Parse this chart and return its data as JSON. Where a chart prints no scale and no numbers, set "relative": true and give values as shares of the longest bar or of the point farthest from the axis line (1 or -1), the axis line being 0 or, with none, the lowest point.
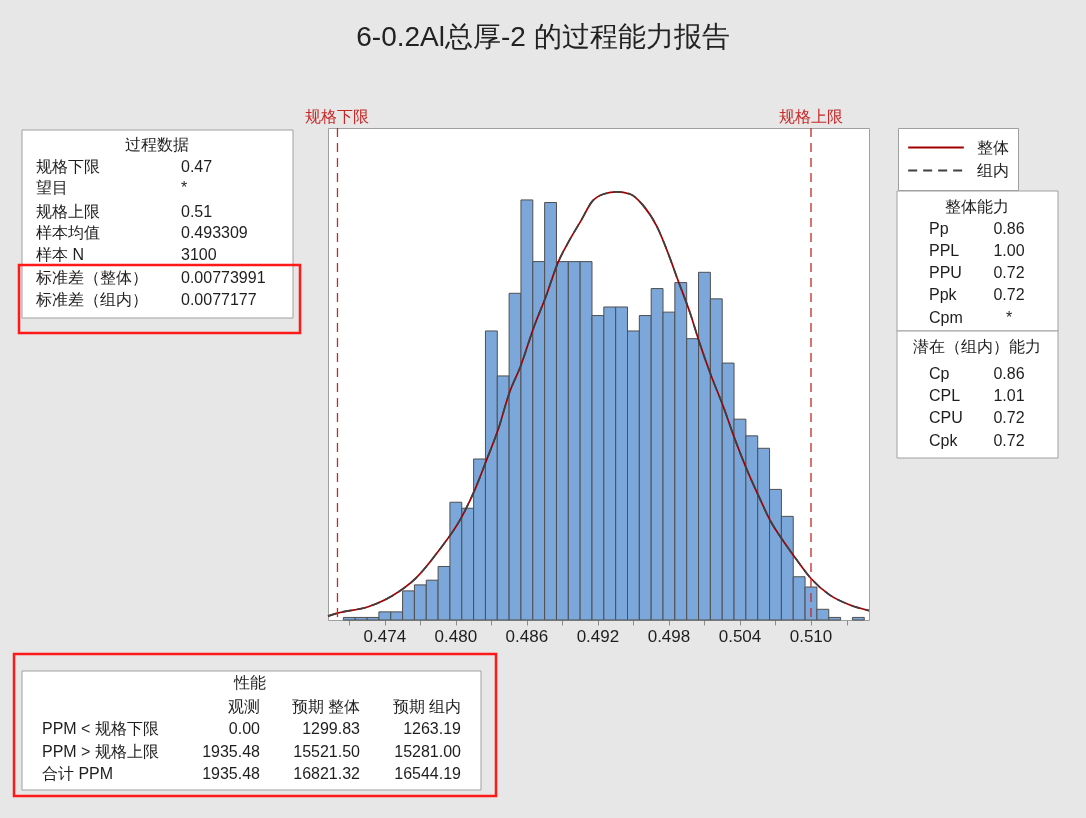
{
  "chart_data": {
    "type": "histogram",
    "title": "6-0.2Al总厚-2 的过程能力报告",
    "relative": true,
    "color": "#7ba7db",
    "bins": [
      0.4705,
      0.4715,
      0.4725,
      0.4735,
      0.4745,
      0.4755,
      0.4765,
      0.4775,
      0.4785,
      0.4795,
      0.4805,
      0.4815,
      0.4825,
      0.4835,
      0.4845,
      0.4855,
      0.4865,
      0.4875,
      0.4885,
      0.4895,
      0.4905,
      0.4915,
      0.4925,
      0.4935,
      0.4945,
      0.4955,
      0.4965,
      0.4975,
      0.4985,
      0.4995,
      0.5005,
      0.5015,
      0.5025,
      0.5035,
      0.5045,
      0.5055,
      0.5065,
      0.5075,
      0.5085,
      0.5095,
      0.5105,
      0.5115,
      0.5125,
      0.5135,
      0.5145
    ],
    "values": [
      0.006,
      0.006,
      0.006,
      0.019,
      0.019,
      0.068,
      0.082,
      0.093,
      0.125,
      0.275,
      0.261,
      0.376,
      0.675,
      0.57,
      0.763,
      0.981,
      0.837,
      0.975,
      0.837,
      0.837,
      0.837,
      0.711,
      0.731,
      0.731,
      0.675,
      0.711,
      0.774,
      0.719,
      0.788,
      0.657,
      0.812,
      0.75,
      0.6,
      0.469,
      0.43,
      0.401,
      0.305,
      0.242,
      0.101,
      0.077,
      0.025,
      0.006,
      0,
      0.006
    ],
    "series": [
      {
        "name": "整体",
        "type": "line",
        "color": "#a00000",
        "line_style": "solid",
        "x": [
          0.4692,
          0.47,
          0.4726,
          0.4746,
          0.4766,
          0.4785,
          0.4805,
          0.4816,
          0.4826,
          0.4836,
          0.4845,
          0.4855,
          0.4866,
          0.4876,
          0.4886,
          0.4896,
          0.4906,
          0.4915,
          0.4925,
          0.4936,
          0.4947,
          0.4958,
          0.497,
          0.4981,
          0.4987,
          0.4998,
          0.5006,
          0.5016,
          0.5026,
          0.5036,
          0.5046,
          0.5056,
          0.5066,
          0.5076,
          0.5086,
          0.51,
          0.5116,
          0.5133,
          0.5149
        ],
        "values": [
          0.009,
          0.016,
          0.031,
          0.056,
          0.097,
          0.16,
          0.241,
          0.304,
          0.374,
          0.447,
          0.529,
          0.595,
          0.685,
          0.755,
          0.833,
          0.887,
          0.934,
          0.977,
          0.995,
          1.0,
          0.995,
          0.969,
          0.918,
          0.844,
          0.798,
          0.716,
          0.646,
          0.568,
          0.498,
          0.42,
          0.35,
          0.288,
          0.23,
          0.187,
          0.148,
          0.097,
          0.058,
          0.035,
          0.022
        ]
      },
      {
        "name": "组内",
        "type": "line",
        "color": "#404040",
        "line_style": "dashed",
        "x": [
          0.4692,
          0.47,
          0.4726,
          0.4746,
          0.4766,
          0.4785,
          0.4805,
          0.4816,
          0.4826,
          0.4836,
          0.4845,
          0.4855,
          0.4866,
          0.4876,
          0.4886,
          0.4896,
          0.4906,
          0.4915,
          0.4925,
          0.4936,
          0.4947,
          0.4958,
          0.497,
          0.4981,
          0.4987,
          0.4998,
          0.5006,
          0.5016,
          0.5026,
          0.5036,
          0.5046,
          0.5056,
          0.5066,
          0.5076,
          0.5086,
          0.51,
          0.5116,
          0.5133,
          0.5149
        ],
        "values": [
          0.009,
          0.016,
          0.031,
          0.056,
          0.097,
          0.16,
          0.241,
          0.304,
          0.374,
          0.447,
          0.529,
          0.595,
          0.685,
          0.755,
          0.833,
          0.887,
          0.934,
          0.977,
          0.995,
          1.0,
          0.995,
          0.969,
          0.918,
          0.844,
          0.798,
          0.716,
          0.646,
          0.568,
          0.498,
          0.42,
          0.35,
          0.288,
          0.23,
          0.187,
          0.148,
          0.097,
          0.058,
          0.035,
          0.022
        ]
      }
    ],
    "xlim": [
      0.4692,
      0.5149
    ],
    "xticks": [
      {
        "value": 0.471,
        "label": null
      },
      0.474,
      {
        "value": 0.477,
        "label": null
      },
      {
        "value": 0.48,
        "label": "0.480"
      },
      {
        "value": 0.483,
        "label": null
      },
      0.486,
      {
        "value": 0.489,
        "label": null
      },
      0.492,
      {
        "value": 0.495,
        "label": null
      },
      0.498,
      {
        "value": 0.501,
        "label": null
      },
      0.504,
      {
        "value": 0.507,
        "label": null
      },
      {
        "value": 0.51,
        "label": "0.510"
      },
      {
        "value": 0.513,
        "label": null
      }
    ],
    "ref_lines": [
      {
        "axis": "x",
        "value": 0.47,
        "label": "规格下限",
        "color": "#c62828",
        "line_style": "dashed"
      },
      {
        "axis": "x",
        "value": 0.51,
        "label": "规格上限",
        "color": "#c62828",
        "line_style": "dashed"
      }
    ],
    "legend": "right",
    "annotations": [
      "过程数据",
      "规格下限",
      "0.47",
      "望目",
      "*",
      "规格上限",
      "0.51",
      "样本均值",
      "0.493309",
      "样本 N",
      "3100",
      "标准差（整体）",
      "0.00773991",
      "标准差（组内）",
      "0.0077177",
      "整体能力",
      "Pp",
      "0.86",
      "PPL",
      "1.00",
      "PPU",
      "0.72",
      "Ppk",
      "0.72",
      "Cpm",
      "*",
      "潜在（组内）能力",
      "Cp",
      "0.86",
      "CPL",
      "1.01",
      "CPU",
      "0.72",
      "Cpk",
      "0.72",
      "性能",
      "观测",
      "预期 整体",
      "预期 组内",
      "PPM < 规格下限",
      "0.00",
      "1299.83",
      "1263.19",
      "PPM > 规格上限",
      "1935.48",
      "15521.50",
      "15281.00",
      "合计 PPM",
      "1935.48",
      "16821.32",
      "16544.19"
    ]
  }
}
